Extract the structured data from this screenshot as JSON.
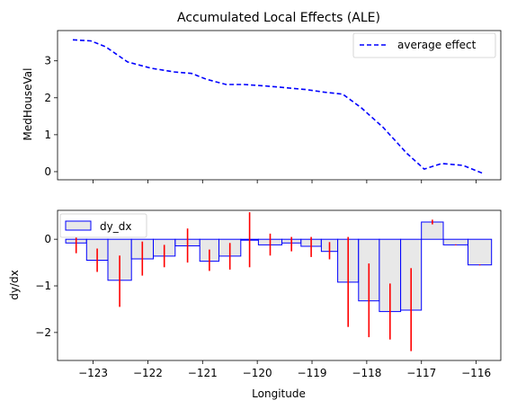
{
  "chart_data": [
    {
      "type": "line",
      "title": "Accumulated Local Effects (ALE)",
      "xlabel": "",
      "ylabel": "MedHouseVal",
      "xlim": [
        -123.65,
        -115.55
      ],
      "ylim": [
        -0.22,
        3.82
      ],
      "yticks": [
        0,
        1,
        2,
        3
      ],
      "grid": false,
      "legend_position": "top-right",
      "series": [
        {
          "name": "average effect",
          "color": "#0000ff",
          "style": "dashed",
          "x": [
            -123.37,
            -123.04,
            -122.77,
            -122.37,
            -121.94,
            -121.52,
            -121.2,
            -120.93,
            -120.57,
            -120.24,
            -119.86,
            -119.53,
            -119.1,
            -118.77,
            -118.44,
            -118.1,
            -117.7,
            -117.27,
            -116.95,
            -116.63,
            -116.24,
            -115.87
          ],
          "y": [
            3.57,
            3.54,
            3.38,
            2.97,
            2.8,
            2.7,
            2.66,
            2.5,
            2.36,
            2.36,
            2.32,
            2.28,
            2.22,
            2.15,
            2.1,
            1.73,
            1.2,
            0.5,
            0.07,
            0.22,
            0.17,
            -0.05
          ]
        }
      ]
    },
    {
      "type": "bar",
      "title": "",
      "xlabel": "Longitude",
      "ylabel": "dy/dx",
      "xlim": [
        -123.65,
        -115.55
      ],
      "ylim": [
        -2.6,
        0.62
      ],
      "xticks": [
        -123,
        -122,
        -121,
        -120,
        -119,
        -118,
        -117,
        -116
      ],
      "xtick_labels": [
        "−123",
        "−122",
        "−121",
        "−120",
        "−119",
        "−118",
        "−117",
        "−116"
      ],
      "yticks": [
        0,
        -1,
        -2
      ],
      "ytick_labels": [
        "0",
        "−1",
        "−2"
      ],
      "grid": false,
      "legend_position": "top-left",
      "series": [
        {
          "name": "dy_dx",
          "fill_color": "#e8e8e8",
          "edge_color": "#0000ff",
          "error_color": "#ff0000",
          "bars": [
            {
              "x0": -123.5,
              "x1": -123.12,
              "value": -0.08,
              "err_lo": -0.3,
              "err_hi": 0.12
            },
            {
              "x0": -123.12,
              "x1": -122.73,
              "value": -0.45,
              "err_lo": -0.7,
              "err_hi": -0.2
            },
            {
              "x0": -122.73,
              "x1": -122.3,
              "value": -0.88,
              "err_lo": -1.45,
              "err_hi": -0.35
            },
            {
              "x0": -122.3,
              "x1": -121.9,
              "value": -0.42,
              "err_lo": -0.78,
              "err_hi": -0.05
            },
            {
              "x0": -121.9,
              "x1": -121.5,
              "value": -0.36,
              "err_lo": -0.6,
              "err_hi": -0.12
            },
            {
              "x0": -121.5,
              "x1": -121.05,
              "value": -0.14,
              "err_lo": -0.5,
              "err_hi": 0.23
            },
            {
              "x0": -121.05,
              "x1": -120.7,
              "value": -0.47,
              "err_lo": -0.68,
              "err_hi": -0.22
            },
            {
              "x0": -120.7,
              "x1": -120.3,
              "value": -0.36,
              "err_lo": -0.65,
              "err_hi": -0.08
            },
            {
              "x0": -120.3,
              "x1": -119.98,
              "value": -0.02,
              "err_lo": -0.6,
              "err_hi": 0.58
            },
            {
              "x0": -119.98,
              "x1": -119.55,
              "value": -0.12,
              "err_lo": -0.35,
              "err_hi": 0.12
            },
            {
              "x0": -119.55,
              "x1": -119.2,
              "value": -0.08,
              "err_lo": -0.26,
              "err_hi": 0.05
            },
            {
              "x0": -119.2,
              "x1": -118.83,
              "value": -0.15,
              "err_lo": -0.38,
              "err_hi": 0.05
            },
            {
              "x0": -118.83,
              "x1": -118.53,
              "value": -0.26,
              "err_lo": -0.43,
              "err_hi": -0.06
            },
            {
              "x0": -118.53,
              "x1": -118.15,
              "value": -0.92,
              "err_lo": -1.88,
              "err_hi": 0.05
            },
            {
              "x0": -118.15,
              "x1": -117.77,
              "value": -1.32,
              "err_lo": -2.1,
              "err_hi": -0.52
            },
            {
              "x0": -117.77,
              "x1": -117.38,
              "value": -1.55,
              "err_lo": -2.15,
              "err_hi": -0.95
            },
            {
              "x0": -117.38,
              "x1": -117.0,
              "value": -1.52,
              "err_lo": -2.4,
              "err_hi": -0.62
            },
            {
              "x0": -117.0,
              "x1": -116.6,
              "value": 0.37,
              "err_lo": 0.32,
              "err_hi": 0.42
            },
            {
              "x0": -116.6,
              "x1": -116.15,
              "value": -0.12,
              "err_lo": -0.13,
              "err_hi": -0.11
            },
            {
              "x0": -116.15,
              "x1": -115.72,
              "value": -0.55,
              "err_lo": -0.56,
              "err_hi": -0.54
            }
          ]
        }
      ]
    }
  ]
}
